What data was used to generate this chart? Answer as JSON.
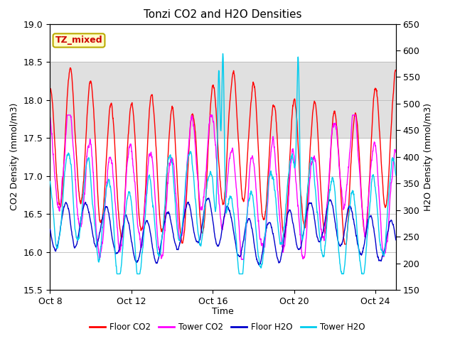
{
  "title": "Tonzi CO2 and H2O Densities",
  "xlabel": "Time",
  "ylabel_left": "CO2 Density (mmol/m3)",
  "ylabel_right": "H2O Density (mmol/m3)",
  "ylim_left": [
    15.5,
    19.0
  ],
  "ylim_right": [
    150,
    650
  ],
  "annotation_text": "TZ_mixed",
  "annotation_bg": "#ffffcc",
  "annotation_border": "#bbaa00",
  "bg_band_color": "#e0e0e0",
  "bg_band_ymin": 17.5,
  "bg_band_ymax": 18.5,
  "legend_labels": [
    "Floor CO2",
    "Tower CO2",
    "Floor H2O",
    "Tower H2O"
  ],
  "legend_colors": [
    "#ff0000",
    "#ff00ff",
    "#0000cc",
    "#00ccee"
  ],
  "line_width": 1.0,
  "n_points": 2000,
  "xlim": [
    0,
    17
  ],
  "xtick_positions": [
    0,
    4,
    8,
    12,
    16
  ],
  "xtick_labels": [
    "Oct 8",
    "Oct 12",
    "Oct 16",
    "Oct 20",
    "Oct 24"
  ],
  "yticks_left": [
    15.5,
    16.0,
    16.5,
    17.0,
    17.5,
    18.0,
    18.5,
    19.0
  ],
  "yticks_right": [
    150,
    200,
    250,
    300,
    350,
    400,
    450,
    500,
    550,
    600,
    650
  ],
  "grid_color": "#bbbbbb",
  "figsize": [
    6.4,
    4.8
  ],
  "dpi": 100
}
